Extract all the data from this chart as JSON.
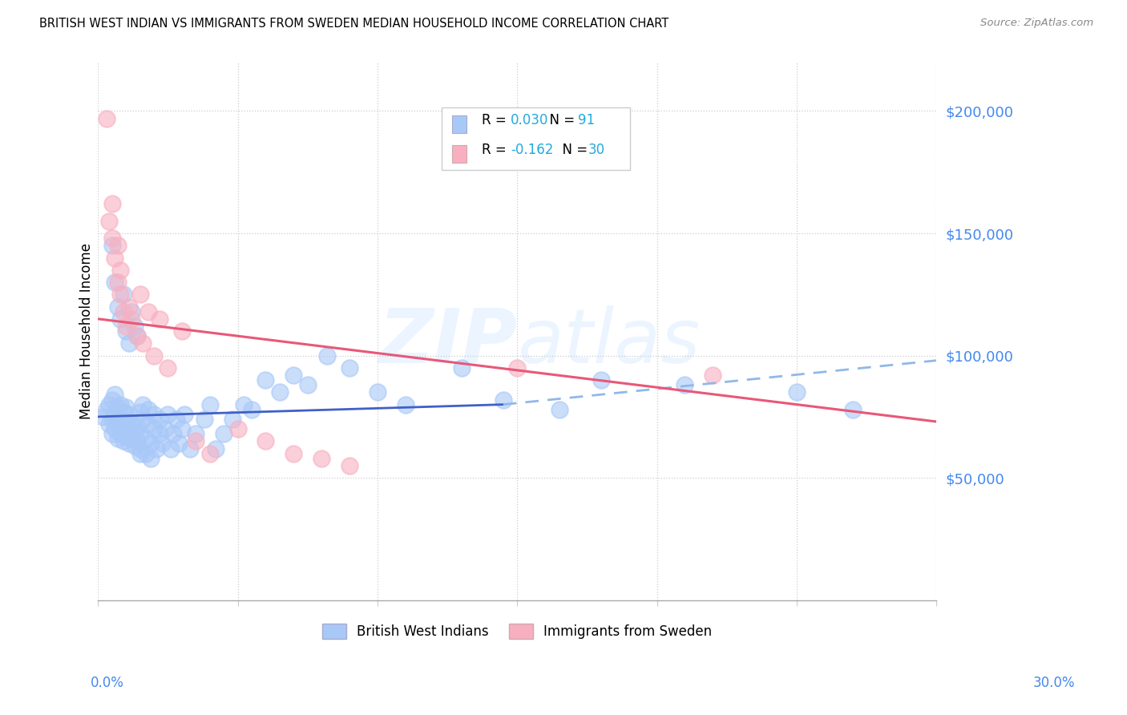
{
  "title": "BRITISH WEST INDIAN VS IMMIGRANTS FROM SWEDEN MEDIAN HOUSEHOLD INCOME CORRELATION CHART",
  "source": "Source: ZipAtlas.com",
  "ylabel": "Median Household Income",
  "xmin": 0.0,
  "xmax": 0.3,
  "ymin": 0,
  "ymax": 220000,
  "watermark": "ZIPatlas",
  "legend_bwi_R": "0.030",
  "legend_bwi_N": "91",
  "legend_swe_R": "-0.162",
  "legend_swe_N": "30",
  "bwi_color": "#a8c8f8",
  "swe_color": "#f8b0c0",
  "trendline_bwi_solid_color": "#4060c8",
  "trendline_bwi_dashed_color": "#90b8e8",
  "trendline_swe_color": "#e85878",
  "axis_label_color": "#4488ee",
  "ytick_values": [
    50000,
    100000,
    150000,
    200000
  ],
  "ytick_labels": [
    "$50,000",
    "$100,000",
    "$150,000",
    "$200,000"
  ],
  "bwi_trend_x": [
    0.0,
    0.145,
    0.3
  ],
  "bwi_trend_y": [
    75000,
    80000,
    98000
  ],
  "swe_trend_x": [
    0.0,
    0.3
  ],
  "swe_trend_y": [
    115000,
    73000
  ],
  "bwi_x": [
    0.002,
    0.003,
    0.004,
    0.004,
    0.005,
    0.005,
    0.005,
    0.006,
    0.006,
    0.006,
    0.007,
    0.007,
    0.007,
    0.008,
    0.008,
    0.008,
    0.009,
    0.009,
    0.009,
    0.01,
    0.01,
    0.01,
    0.011,
    0.011,
    0.011,
    0.012,
    0.012,
    0.013,
    0.013,
    0.014,
    0.014,
    0.015,
    0.015,
    0.015,
    0.016,
    0.016,
    0.017,
    0.017,
    0.018,
    0.018,
    0.019,
    0.019,
    0.02,
    0.02,
    0.021,
    0.022,
    0.022,
    0.023,
    0.024,
    0.025,
    0.026,
    0.027,
    0.028,
    0.029,
    0.03,
    0.031,
    0.033,
    0.035,
    0.038,
    0.04,
    0.042,
    0.045,
    0.048,
    0.052,
    0.055,
    0.06,
    0.065,
    0.07,
    0.075,
    0.082,
    0.09,
    0.1,
    0.11,
    0.13,
    0.145,
    0.165,
    0.18,
    0.21,
    0.25,
    0.27,
    0.005,
    0.006,
    0.007,
    0.008,
    0.009,
    0.01,
    0.011,
    0.012,
    0.013,
    0.014,
    0.015
  ],
  "bwi_y": [
    75000,
    78000,
    72000,
    80000,
    68000,
    74000,
    82000,
    70000,
    76000,
    84000,
    66000,
    72000,
    79000,
    68000,
    74000,
    80000,
    65000,
    71000,
    77000,
    67000,
    73000,
    79000,
    64000,
    70000,
    76000,
    66000,
    72000,
    63000,
    69000,
    65000,
    71000,
    77000,
    62000,
    68000,
    74000,
    80000,
    60000,
    66000,
    72000,
    78000,
    58000,
    64000,
    70000,
    76000,
    62000,
    68000,
    74000,
    64000,
    70000,
    76000,
    62000,
    68000,
    74000,
    64000,
    70000,
    76000,
    62000,
    68000,
    74000,
    80000,
    62000,
    68000,
    74000,
    80000,
    78000,
    90000,
    85000,
    92000,
    88000,
    100000,
    95000,
    85000,
    80000,
    95000,
    82000,
    78000,
    90000,
    88000,
    85000,
    78000,
    145000,
    130000,
    120000,
    115000,
    125000,
    110000,
    105000,
    118000,
    112000,
    108000,
    60000
  ],
  "swe_x": [
    0.003,
    0.004,
    0.005,
    0.005,
    0.006,
    0.007,
    0.007,
    0.008,
    0.008,
    0.009,
    0.01,
    0.011,
    0.012,
    0.014,
    0.015,
    0.016,
    0.018,
    0.02,
    0.022,
    0.025,
    0.03,
    0.035,
    0.04,
    0.05,
    0.06,
    0.07,
    0.08,
    0.09,
    0.15,
    0.22
  ],
  "swe_y": [
    197000,
    155000,
    148000,
    162000,
    140000,
    130000,
    145000,
    135000,
    125000,
    118000,
    112000,
    120000,
    115000,
    108000,
    125000,
    105000,
    118000,
    100000,
    115000,
    95000,
    110000,
    65000,
    60000,
    70000,
    65000,
    60000,
    58000,
    55000,
    95000,
    92000
  ]
}
